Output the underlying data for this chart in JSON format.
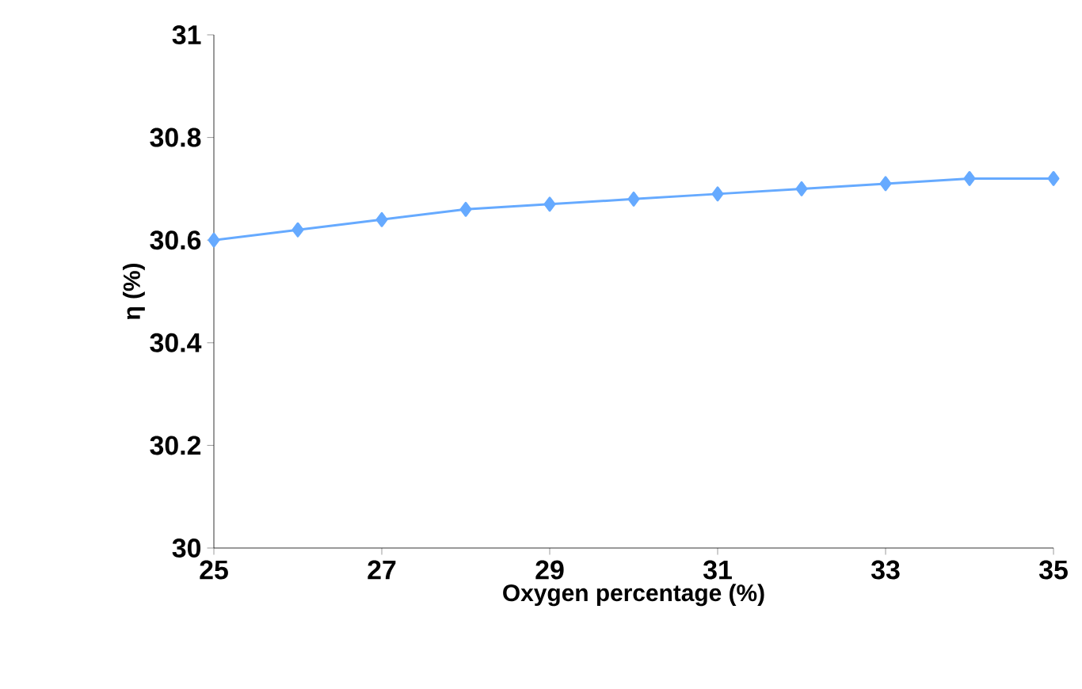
{
  "chart_data": {
    "type": "line",
    "xlabel": "Oxygen percentage (%)",
    "ylabel": "η (%)",
    "x": [
      25,
      26,
      27,
      28,
      29,
      30,
      31,
      32,
      33,
      34,
      35
    ],
    "values": [
      30.6,
      30.62,
      30.64,
      30.66,
      30.67,
      30.68,
      30.69,
      30.7,
      30.71,
      30.72,
      30.72
    ],
    "color": "#66aaff",
    "marker": "diamond",
    "xlim": [
      25,
      35
    ],
    "xticks": [
      25,
      27,
      29,
      31,
      33,
      35
    ],
    "ylim": [
      30,
      31
    ],
    "yticks": [
      30,
      30.2,
      30.4,
      30.6,
      30.8,
      31
    ]
  }
}
